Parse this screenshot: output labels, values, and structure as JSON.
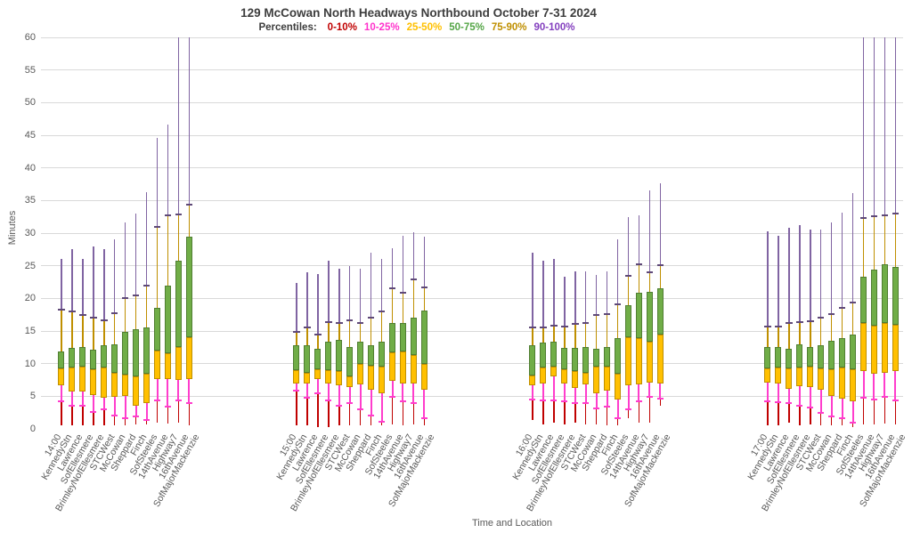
{
  "chart_data": {
    "type": "box-percentile",
    "title": "129 McCowan North Headways Northbound October 7-31 2024",
    "legend_label": "Percentiles:",
    "legend": [
      {
        "label": "0-10%",
        "color": "#C00000"
      },
      {
        "label": "10-25%",
        "color": "#FF33CC"
      },
      {
        "label": "25-50%",
        "color": "#FFC000"
      },
      {
        "label": "50-75%",
        "color": "#54A546"
      },
      {
        "label": "75-90%",
        "color": "#BF8F00"
      },
      {
        "label": "90-100%",
        "color": "#8440BF"
      }
    ],
    "ylabel": "Minutes",
    "xlabel": "Time and Location",
    "ylim": [
      0,
      60
    ],
    "ytick_step": 5,
    "grid": "horizontal",
    "colors": {
      "p0_10": "#C00000",
      "p10_25": "#FF3DCC",
      "p25_50": "#FFC000",
      "p25_50_border": "#BF8F00",
      "p50_75": "#70AD47",
      "p50_75_border": "#507E32",
      "p75_90": "#BF8F00",
      "p90_100": "#8064A2",
      "p90_tick": "#5F4978",
      "gridline": "#d9d9d9"
    },
    "percentile_keys": [
      "min",
      "p10",
      "p25",
      "p50",
      "p75",
      "p90",
      "max"
    ],
    "groups": [
      {
        "time": "14:00",
        "bars": [
          {
            "station": "KennedyStn",
            "values": [
              0.6,
              4.2,
              6.7,
              9.3,
              11.8,
              18.3,
              26.1
            ]
          },
          {
            "station": "Lawrence",
            "values": [
              0.5,
              3.6,
              5.7,
              9.4,
              12.4,
              18.0,
              27.6
            ]
          },
          {
            "station": "SofEllesmere",
            "values": [
              0.5,
              3.5,
              5.7,
              9.5,
              12.6,
              17.4,
              26.0
            ]
          },
          {
            "station": "BrimleyNofEllesmere",
            "values": [
              0.6,
              2.6,
              5.2,
              9.1,
              12.1,
              17.0,
              27.9
            ]
          },
          {
            "station": "STCWest",
            "values": [
              0.5,
              3.0,
              4.8,
              9.4,
              12.8,
              16.6,
              27.6
            ]
          },
          {
            "station": "McCowan",
            "values": [
              0.5,
              2.1,
              4.9,
              8.6,
              13.0,
              17.7,
              29.1
            ]
          },
          {
            "station": "Sheppard",
            "values": [
              0.6,
              1.7,
              5.1,
              8.3,
              14.9,
              20.1,
              31.6
            ]
          },
          {
            "station": "Finch",
            "values": [
              0.7,
              1.9,
              3.5,
              8.0,
              15.3,
              20.5,
              33.0
            ]
          },
          {
            "station": "SofSteeles",
            "values": [
              0.7,
              1.3,
              4.0,
              8.5,
              15.5,
              22.0,
              36.3
            ]
          },
          {
            "station": "14thAvenue",
            "values": [
              1.0,
              4.3,
              7.7,
              12.0,
              18.5,
              31.0,
              44.6
            ]
          },
          {
            "station": "Highway7",
            "values": [
              0.8,
              3.4,
              7.6,
              11.6,
              22.0,
              32.7,
              46.7
            ]
          },
          {
            "station": "16thAvenue",
            "values": [
              0.9,
              4.4,
              7.5,
              12.5,
              25.8,
              32.9,
              60
            ]
          },
          {
            "station": "SofMajorMackenzie",
            "values": [
              0.6,
              4.0,
              7.7,
              14.0,
              29.5,
              34.3,
              60
            ]
          }
        ]
      },
      {
        "time": "15:00",
        "bars": [
          {
            "station": "KennedyStn",
            "values": [
              0.5,
              5.8,
              6.9,
              9.0,
              12.8,
              14.9,
              22.3
            ]
          },
          {
            "station": "Lawrence",
            "values": [
              0.5,
              4.8,
              6.9,
              8.6,
              12.8,
              15.5,
              24.0
            ]
          },
          {
            "station": "SofEllesmere",
            "values": [
              0.3,
              5.5,
              7.6,
              9.2,
              12.3,
              14.5,
              23.7
            ]
          },
          {
            "station": "BrimleyNofEllesmere",
            "values": [
              0.3,
              4.4,
              7.0,
              9.0,
              13.3,
              16.4,
              25.8
            ]
          },
          {
            "station": "STCWest",
            "values": [
              0.5,
              3.6,
              6.7,
              8.8,
              13.6,
              16.2,
              24.6
            ]
          },
          {
            "station": "McCowan",
            "values": [
              0.5,
              4.0,
              6.4,
              8.0,
              12.6,
              16.7,
              25.0
            ]
          },
          {
            "station": "Sheppard",
            "values": [
              0.5,
              3.0,
              6.8,
              10.0,
              13.3,
              16.2,
              24.6
            ]
          },
          {
            "station": "Finch",
            "values": [
              0.5,
              2.1,
              6.0,
              9.7,
              12.8,
              17.0,
              27.0
            ]
          },
          {
            "station": "SofSteeles",
            "values": [
              0.5,
              1.1,
              5.5,
              9.5,
              13.4,
              18.0,
              26.1
            ]
          },
          {
            "station": "14thAvenue",
            "values": [
              0.7,
              4.9,
              7.3,
              11.7,
              16.2,
              21.5,
              27.7
            ]
          },
          {
            "station": "Highway7",
            "values": [
              0.6,
              4.2,
              6.9,
              11.8,
              16.2,
              20.8,
              29.6
            ]
          },
          {
            "station": "16thAvenue",
            "values": [
              0.7,
              4.0,
              7.0,
              11.3,
              17.0,
              22.9,
              30.1
            ]
          },
          {
            "station": "SofMajorMackenzie",
            "values": [
              0.5,
              1.7,
              6.0,
              10.0,
              18.1,
              21.7,
              29.5
            ]
          }
        ]
      },
      {
        "time": "16:00",
        "bars": [
          {
            "station": "KennedyStn",
            "values": [
              1.4,
              4.5,
              6.7,
              8.2,
              12.8,
              15.5,
              27.0
            ]
          },
          {
            "station": "Lawrence",
            "values": [
              0.7,
              4.3,
              7.0,
              9.4,
              13.2,
              15.5,
              25.8
            ]
          },
          {
            "station": "SofEllesmere",
            "values": [
              1.0,
              4.4,
              8.0,
              9.6,
              13.3,
              15.8,
              26.0
            ]
          },
          {
            "station": "BrimleyNofEllesmere",
            "values": [
              0.7,
              4.2,
              6.9,
              9.2,
              12.4,
              15.7,
              23.3
            ]
          },
          {
            "station": "STCWest",
            "values": [
              0.9,
              3.9,
              6.3,
              8.9,
              12.4,
              16.1,
              24.2
            ]
          },
          {
            "station": "McCowan",
            "values": [
              0.7,
              4.0,
              6.8,
              8.6,
              12.5,
              16.2,
              24.2
            ]
          },
          {
            "station": "Sheppard",
            "values": [
              0.7,
              3.2,
              5.4,
              9.6,
              12.3,
              17.5,
              23.6
            ]
          },
          {
            "station": "Finch",
            "values": [
              0.6,
              3.4,
              5.8,
              9.5,
              12.6,
              17.6,
              24.1
            ]
          },
          {
            "station": "SofSteeles",
            "values": [
              0.6,
              1.7,
              4.5,
              8.4,
              13.9,
              19.1,
              29.1
            ]
          },
          {
            "station": "14thAvenue",
            "values": [
              1.6,
              3.0,
              6.7,
              14.0,
              19.0,
              23.4,
              32.5
            ]
          },
          {
            "station": "Highway7",
            "values": [
              0.9,
              4.2,
              6.8,
              13.9,
              20.9,
              25.2,
              32.7
            ]
          },
          {
            "station": "16thAvenue",
            "values": [
              1.0,
              4.9,
              7.1,
              13.3,
              21.0,
              24.0,
              36.6
            ]
          },
          {
            "station": "SofMajorMackenzie",
            "values": [
              3.6,
              4.7,
              7.0,
              14.4,
              21.5,
              25.1,
              37.7
            ]
          }
        ]
      },
      {
        "time": "17:00",
        "bars": [
          {
            "station": "KennedyStn",
            "values": [
              0.6,
              4.2,
              7.1,
              9.3,
              12.5,
              15.7,
              30.3
            ]
          },
          {
            "station": "Lawrence",
            "values": [
              0.6,
              4.1,
              7.0,
              9.4,
              12.6,
              15.7,
              29.6
            ]
          },
          {
            "station": "SofEllesmere",
            "values": [
              0.9,
              4.0,
              6.2,
              9.3,
              12.3,
              16.2,
              30.8
            ]
          },
          {
            "station": "BrimleyNofEllesmere",
            "values": [
              0.6,
              3.5,
              6.6,
              9.4,
              12.9,
              16.4,
              31.2
            ]
          },
          {
            "station": "STCWest",
            "values": [
              0.7,
              3.3,
              6.4,
              9.5,
              12.6,
              16.5,
              30.5
            ]
          },
          {
            "station": "McCowan",
            "values": [
              0.6,
              2.4,
              6.0,
              9.3,
              12.8,
              17.0,
              30.5
            ]
          },
          {
            "station": "Sheppard",
            "values": [
              0.5,
              1.9,
              5.1,
              9.2,
              13.5,
              17.6,
              31.6
            ]
          },
          {
            "station": "Finch",
            "values": [
              0.5,
              1.6,
              4.7,
              9.4,
              13.9,
              18.5,
              33.1
            ]
          },
          {
            "station": "SofSteeles",
            "values": [
              0.3,
              0.9,
              4.2,
              9.2,
              14.4,
              19.4,
              36.2
            ]
          },
          {
            "station": "14thAvenue",
            "values": [
              0.7,
              4.8,
              8.9,
              16.2,
              23.3,
              32.3,
              60
            ]
          },
          {
            "station": "Highway7",
            "values": [
              0.7,
              4.5,
              8.4,
              15.8,
              24.4,
              32.6,
              60
            ]
          },
          {
            "station": "16thAvenue",
            "values": [
              0.8,
              4.9,
              8.6,
              16.2,
              25.2,
              32.7,
              60
            ]
          },
          {
            "station": "SofMajorMackenzie",
            "values": [
              0.7,
              4.3,
              8.8,
              16.0,
              24.8,
              33.0,
              60
            ]
          }
        ]
      }
    ]
  }
}
